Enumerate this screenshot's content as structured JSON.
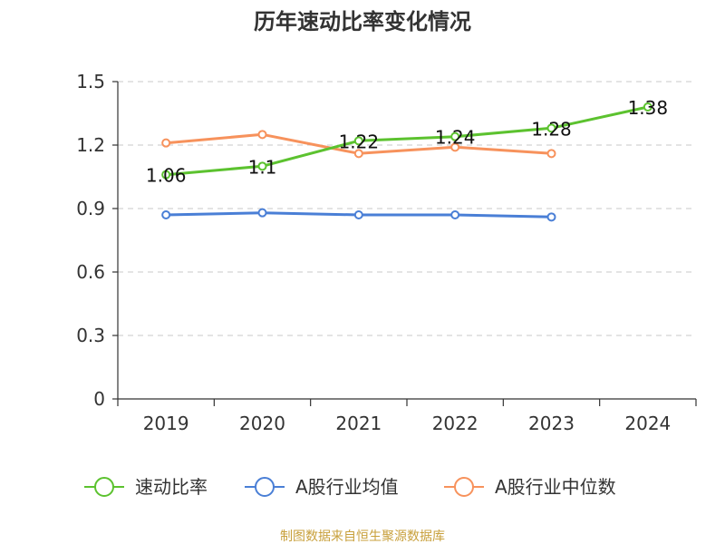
{
  "chart_data": {
    "type": "line",
    "title": "历年速动比率变化情况",
    "xlabel": "",
    "ylabel": "",
    "categories": [
      "2019",
      "2020",
      "2021",
      "2022",
      "2023",
      "2024"
    ],
    "yticks": [
      "0",
      "0.3",
      "0.6",
      "0.9",
      "1.2",
      "1.5"
    ],
    "ylim": [
      0,
      1.5
    ],
    "grid": true,
    "legend_position": "bottom",
    "series": [
      {
        "name": "速动比率",
        "color": "#5cc22f",
        "values": [
          1.06,
          1.1,
          1.22,
          1.24,
          1.28,
          1.38
        ],
        "labels": [
          "1.06",
          "1.1",
          "1.22",
          "1.24",
          "1.28",
          "1.38"
        ]
      },
      {
        "name": "A股行业均值",
        "color": "#4a7fd6",
        "values": [
          0.87,
          0.88,
          0.87,
          0.87,
          0.86,
          null
        ]
      },
      {
        "name": "A股行业中位数",
        "color": "#f7925c",
        "values": [
          1.21,
          1.25,
          1.16,
          1.19,
          1.16,
          null
        ]
      }
    ]
  },
  "footer": {
    "source": "制图数据来自恒生聚源数据库"
  }
}
